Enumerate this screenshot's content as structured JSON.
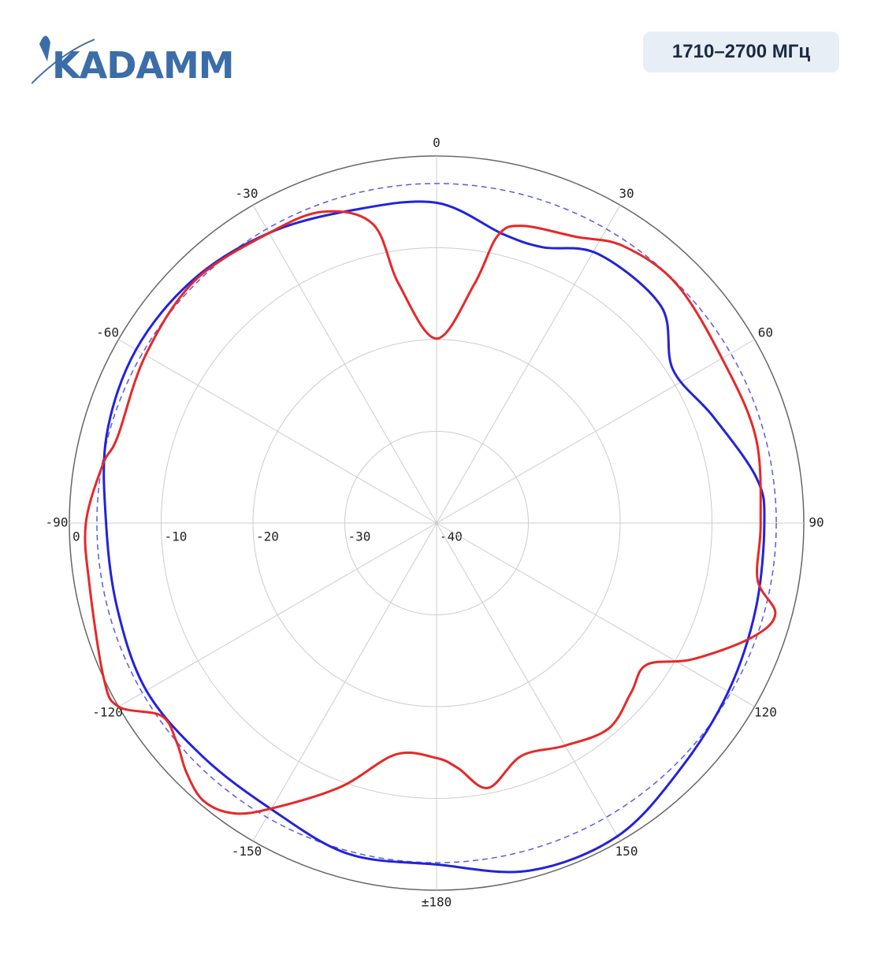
{
  "header": {
    "logo": "KADAMM",
    "badge": "1710–2700 МГц"
  },
  "chart_data": {
    "type": "polar",
    "rlim": [
      -40,
      0
    ],
    "rticks": [
      -40,
      -30,
      -20,
      -10,
      0
    ],
    "thetaticks": [
      0,
      30,
      60,
      90,
      120,
      150,
      {
        "value": 180,
        "label": "±180"
      },
      -150,
      -120,
      -90,
      -60,
      -30
    ],
    "reference_circle": -3,
    "reference_color": "#5a5ae6",
    "grid": true,
    "series": [
      {
        "color": "#2222dd",
        "theta": [
          -165,
          -150,
          -135,
          -120,
          -105,
          -90,
          -75,
          -60,
          -45,
          -30,
          -15,
          0,
          13,
          21,
          31,
          46,
          57,
          69,
          82,
          90,
          105,
          120,
          135,
          150,
          165,
          180
        ],
        "values": [
          -2.7,
          -4,
          -4,
          -3.5,
          -4,
          -4,
          -2.8,
          -2.2,
          -2.5,
          -3.5,
          -4.7,
          -5.1,
          -7.7,
          -7.8,
          -5.8,
          -6,
          -9.3,
          -7.7,
          -4.8,
          -4.3,
          -4,
          -3.3,
          -2.3,
          -0.6,
          -0.8,
          -2.8
        ]
      },
      {
        "color": "#e62828",
        "theta": [
          -170,
          -160,
          -150,
          -145,
          -140,
          -135,
          -130,
          -125,
          -120,
          -115,
          -100,
          -90,
          -80,
          -75,
          -60,
          -45,
          -30,
          -20,
          -12,
          -9,
          0,
          9,
          12,
          16,
          26,
          34,
          45,
          60,
          75,
          90,
          100,
          105,
          110,
          118,
          124,
          131,
          140,
          150,
          160,
          169,
          175,
          180
        ],
        "values": [
          -14.4,
          -9.4,
          -4.1,
          -1.4,
          -0.5,
          -1.5,
          -3,
          -3.4,
          0,
          0,
          -1.6,
          -1.8,
          -3.1,
          -4,
          -3.4,
          -2.7,
          -3.5,
          -3.9,
          -6.7,
          -13.6,
          -19.9,
          -13.6,
          -8,
          -6.3,
          -5.3,
          -3.6,
          -3.1,
          -4.1,
          -4,
          -4.7,
          -4.5,
          -1.8,
          -3.5,
          -8.4,
          -12.4,
          -11.9,
          -10.8,
          -12,
          -13,
          -10.6,
          -13.2,
          -14.4
        ]
      }
    ]
  }
}
